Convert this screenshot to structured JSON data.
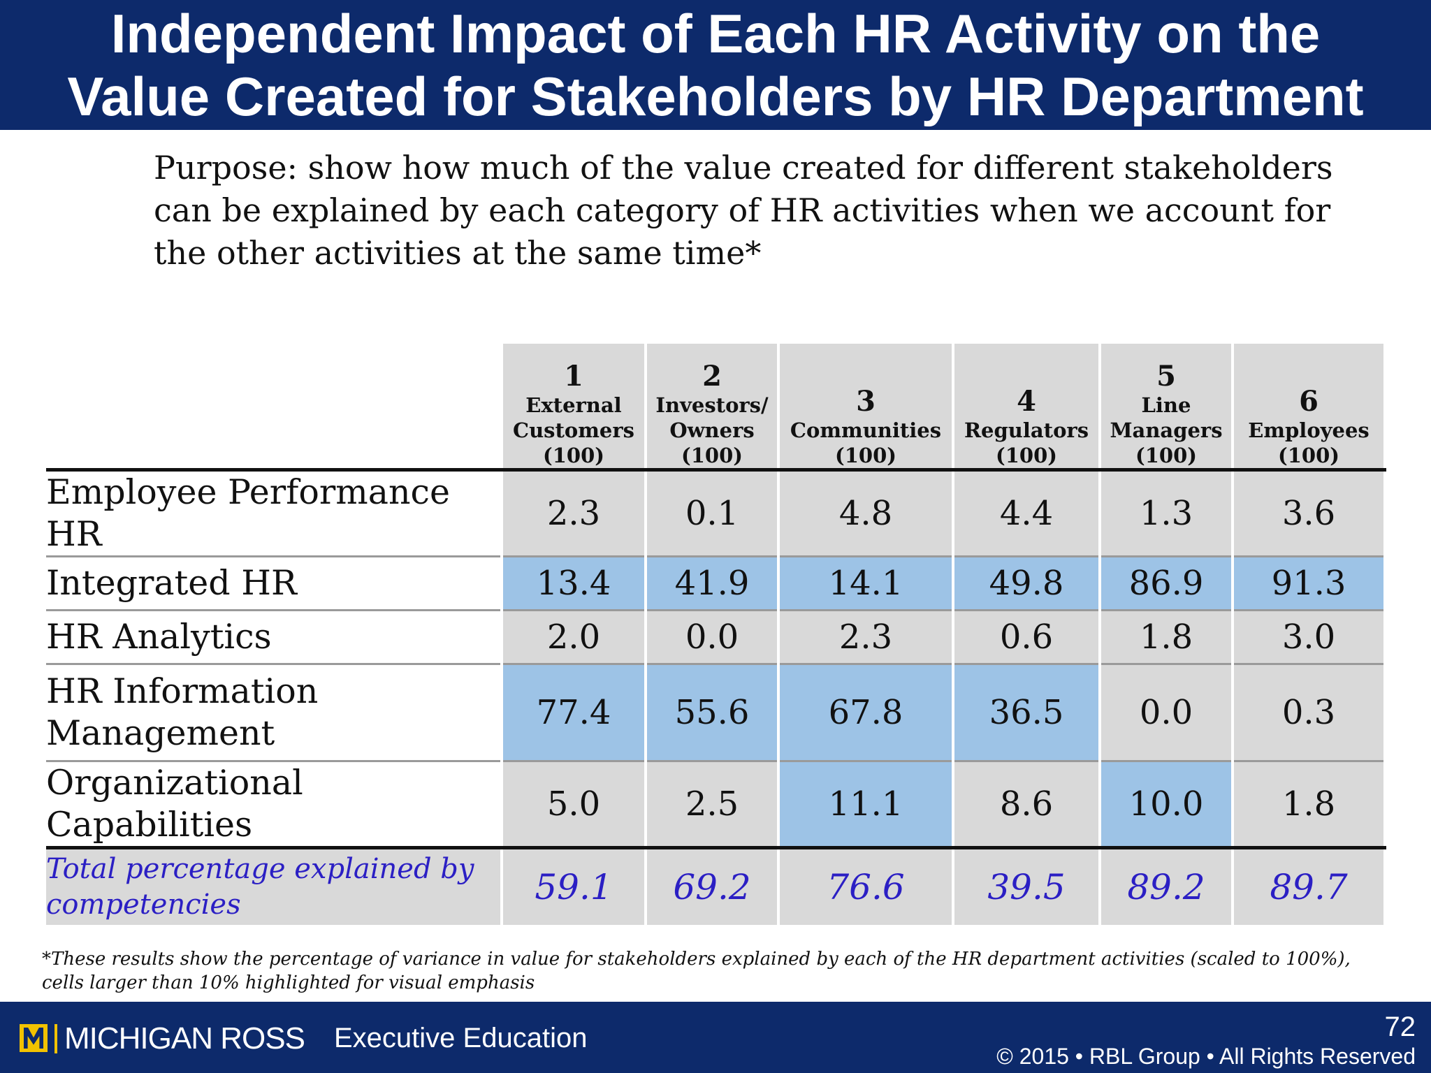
{
  "title": {
    "line1": "Independent Impact of Each HR Activity on the",
    "line2": "Value Created for Stakeholders by HR Department"
  },
  "purpose": {
    "line1": "Purpose: show how much of the value created for different stakeholders",
    "line2": "can be explained by each category of HR activities when we account for",
    "line3": "the other activities at the same time*"
  },
  "table": {
    "columns": [
      {
        "num": "1",
        "line1": "External",
        "line2": "Customers",
        "line3": "(100)"
      },
      {
        "num": "2",
        "line1": "Investors/",
        "line2": "Owners",
        "line3": "(100)"
      },
      {
        "num": "3",
        "line1": "",
        "line2": "Communities",
        "line3": "(100)"
      },
      {
        "num": "4",
        "line1": "",
        "line2": "Regulators",
        "line3": "(100)"
      },
      {
        "num": "5",
        "line1": "Line",
        "line2": "Managers",
        "line3": "(100)"
      },
      {
        "num": "6",
        "line1": "",
        "line2": "Employees",
        "line3": "(100)"
      }
    ],
    "rows": [
      {
        "label_line1": "Employee Performance HR",
        "label_line2": "",
        "values": [
          "2.3",
          "0.1",
          "4.8",
          "4.4",
          "1.3",
          "3.6"
        ],
        "highlight": [
          false,
          false,
          false,
          false,
          false,
          false
        ]
      },
      {
        "label_line1": "Integrated HR",
        "label_line2": "",
        "values": [
          "13.4",
          "41.9",
          "14.1",
          "49.8",
          "86.9",
          "91.3"
        ],
        "highlight": [
          true,
          true,
          true,
          true,
          true,
          true
        ]
      },
      {
        "label_line1": "HR Analytics",
        "label_line2": "",
        "values": [
          "2.0",
          "0.0",
          "2.3",
          "0.6",
          "1.8",
          "3.0"
        ],
        "highlight": [
          false,
          false,
          false,
          false,
          false,
          false
        ]
      },
      {
        "label_line1": "HR Information",
        "label_line2": "Management",
        "values": [
          "77.4",
          "55.6",
          "67.8",
          "36.5",
          "0.0",
          "0.3"
        ],
        "highlight": [
          true,
          true,
          true,
          true,
          false,
          false
        ]
      },
      {
        "label_line1": "Organizational Capabilities",
        "label_line2": "",
        "values": [
          "5.0",
          "2.5",
          "11.1",
          "8.6",
          "10.0",
          "1.8"
        ],
        "highlight": [
          false,
          false,
          true,
          false,
          true,
          false
        ]
      }
    ],
    "total": {
      "label_line1": "Total percentage explained by",
      "label_line2": "competencies",
      "values": [
        "59.1",
        "69.2",
        "76.6",
        "39.5",
        "89.2",
        "89.7"
      ]
    }
  },
  "footnote": {
    "line1": "*These results show the percentage of variance in value for stakeholders explained by each of the HR department activities (scaled to 100%),",
    "line2": "cells larger than 10% highlighted for visual emphasis"
  },
  "footer": {
    "logo_text": "MICHIGAN ROSS",
    "exec_ed": "Executive Education",
    "page_number": "72",
    "copyright": "© 2015 • RBL Group • All Rights Reserved"
  },
  "colors": {
    "banner": "#0d2a6b",
    "cell_gray": "#d9d9d9",
    "highlight_blue": "#9dc3e6",
    "total_text": "#2b1fc4",
    "logo_gold": "#f2c200"
  }
}
